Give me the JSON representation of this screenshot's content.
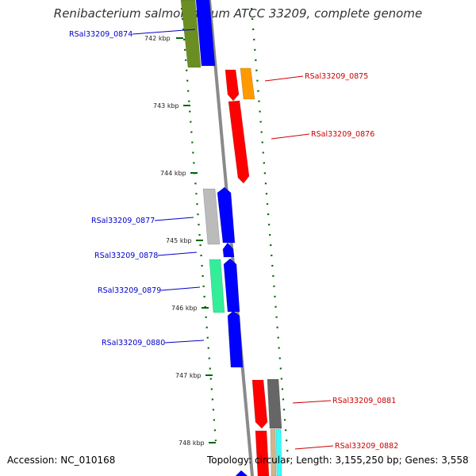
{
  "title": "Renibacterium salmoninarum ATCC 33209, complete genome",
  "accession_text": "Accession: NC_010168",
  "summary_text": "Topology: circular; Length: 3,155,250 bp; Genes: 3,558",
  "ticks": [
    {
      "label": "742 kbp"
    },
    {
      "label": "743 kbp"
    },
    {
      "label": "744 kbp"
    },
    {
      "label": "745 kbp"
    },
    {
      "label": "746 kbp"
    },
    {
      "label": "747 kbp"
    },
    {
      "label": "748 kbp"
    }
  ],
  "gene_labels": [
    {
      "id": "RSal33209_0874",
      "color": "#0000cc"
    },
    {
      "id": "RSal33209_0875",
      "color": "#cc0000"
    },
    {
      "id": "RSal33209_0876",
      "color": "#cc0000"
    },
    {
      "id": "RSal33209_0877",
      "color": "#0000cc"
    },
    {
      "id": "RSal33209_0878",
      "color": "#0000cc"
    },
    {
      "id": "RSal33209_0879",
      "color": "#0000cc"
    },
    {
      "id": "RSal33209_0880",
      "color": "#0000cc"
    },
    {
      "id": "RSal33209_0881",
      "color": "#cc0000"
    },
    {
      "id": "RSal33209_0882",
      "color": "#cc0000"
    }
  ],
  "colors": {
    "forward": "#ff0000",
    "reverse": "#0000ff",
    "backbone": "#8a8a8a",
    "tick": "#006600",
    "cog_orange": "#ff9900",
    "cog_olive": "#6b8e23",
    "cog_grey": "#bbbbbb",
    "cog_teal": "#33ee99",
    "cog_dark": "#666666",
    "cog_cyan": "#33ffff",
    "cog_tan": "#d2b48c"
  }
}
